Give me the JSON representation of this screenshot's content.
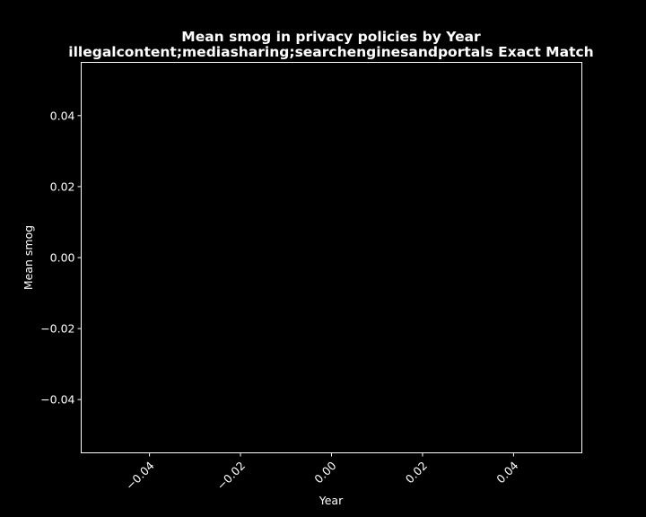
{
  "chart_data": {
    "type": "line",
    "title_line1": "Mean smog in privacy policies by Year",
    "title_line2": "illegalcontent;mediasharing;searchenginesandportals Exact Match",
    "xlabel": "Year",
    "ylabel": "Mean smog",
    "xlim": [
      -0.055,
      0.055
    ],
    "ylim": [
      -0.055,
      0.055
    ],
    "xticks": [
      -0.04,
      -0.02,
      0.0,
      0.02,
      0.04
    ],
    "xtick_labels": [
      "−0.04",
      "−0.02",
      "0.00",
      "0.02",
      "0.04"
    ],
    "yticks": [
      -0.04,
      -0.02,
      0.0,
      0.02,
      0.04
    ],
    "ytick_labels": [
      "−0.04",
      "−0.02",
      "0.00",
      "0.02",
      "0.04"
    ],
    "series": [],
    "grid": false,
    "background": "#000000",
    "foreground": "#ffffff"
  }
}
